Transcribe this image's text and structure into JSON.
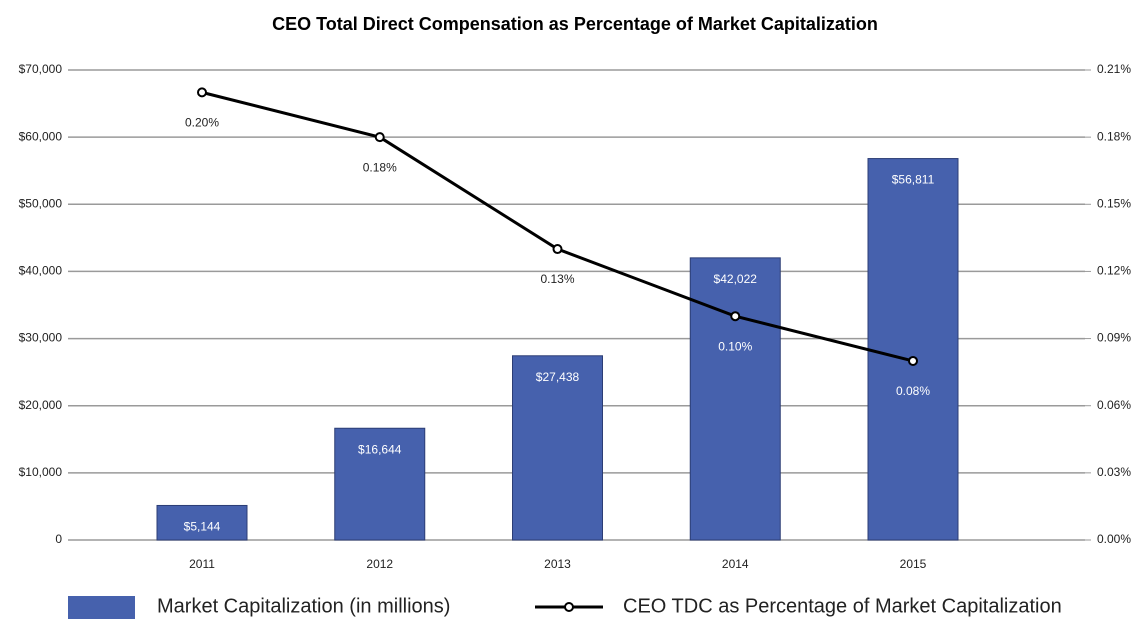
{
  "chart_data": {
    "type": "bar",
    "title": "CEO Total Direct Compensation as Percentage of Market Capitalization",
    "categories": [
      "2011",
      "2012",
      "2013",
      "2014",
      "2015"
    ],
    "series": [
      {
        "name": "Market Capitalization (in millions)",
        "type": "bar",
        "axis": "y",
        "color": "#4661ad",
        "values": [
          5144,
          16644,
          27438,
          42022,
          56811
        ],
        "value_labels": [
          "$5,144",
          "$16,644",
          "$27,438",
          "$42,022",
          "$56,811"
        ]
      },
      {
        "name": "CEO TDC as Percentage of Market Capitalization",
        "type": "line",
        "axis": "y2",
        "color": "#000000",
        "values": [
          0.2,
          0.18,
          0.13,
          0.1,
          0.08
        ],
        "value_labels": [
          "0.20%",
          "0.18%",
          "0.13%",
          "0.10%",
          "0.08%"
        ]
      }
    ],
    "ylim": [
      0,
      70000
    ],
    "yticks": [
      0,
      {
        "value": 10000,
        "label": "$10,000"
      },
      {
        "value": 20000,
        "label": "$20,000"
      },
      {
        "value": 30000,
        "label": "$30,000"
      },
      {
        "value": 40000,
        "label": "$40,000"
      },
      {
        "value": 50000,
        "label": "$50,000"
      },
      {
        "value": 60000,
        "label": "$60,000"
      },
      {
        "value": 70000,
        "label": "$70,000"
      }
    ],
    "y2lim": [
      0,
      0.21
    ],
    "y2ticks": [
      {
        "value": 0,
        "label": "0.00%"
      },
      {
        "value": 0.03,
        "label": "0.03%"
      },
      {
        "value": 0.06,
        "label": "0.06%"
      },
      {
        "value": 0.09,
        "label": "0.09%"
      },
      {
        "value": 0.12,
        "label": "0.12%"
      },
      {
        "value": 0.15,
        "label": "0.15%"
      },
      {
        "value": 0.18,
        "label": "0.18%"
      },
      {
        "value": 0.21,
        "label": "0.21%"
      }
    ],
    "grid": true,
    "legend": "bottom"
  }
}
